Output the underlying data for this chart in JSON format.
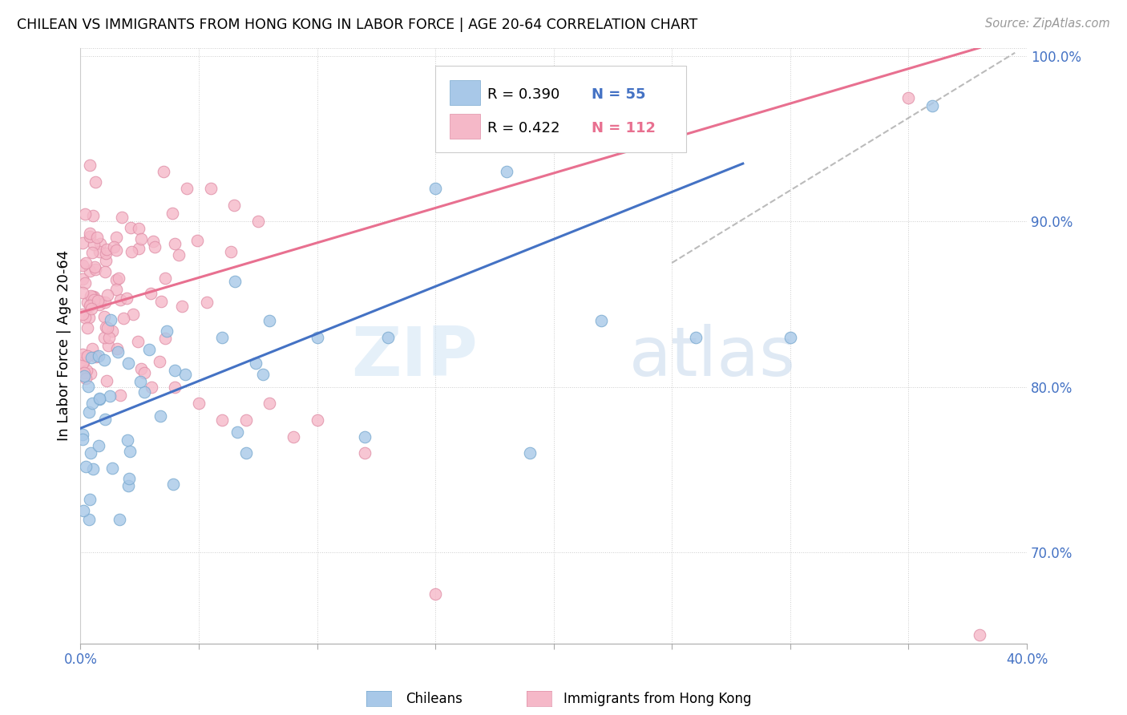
{
  "title": "CHILEAN VS IMMIGRANTS FROM HONG KONG IN LABOR FORCE | AGE 20-64 CORRELATION CHART",
  "source": "Source: ZipAtlas.com",
  "ylabel": "In Labor Force | Age 20-64",
  "xlim": [
    0.0,
    0.4
  ],
  "ylim": [
    0.645,
    1.005
  ],
  "blue_color": "#a8c8e8",
  "blue_edge_color": "#7aaad0",
  "pink_color": "#f5b8c8",
  "pink_edge_color": "#e090a8",
  "blue_line_color": "#4472c4",
  "pink_line_color": "#e87090",
  "dash_line_color": "#aaaaaa",
  "blue_R": 0.39,
  "blue_N": 55,
  "pink_R": 0.422,
  "pink_N": 112,
  "watermark_zip": "ZIP",
  "watermark_atlas": "atlas",
  "background_color": "#ffffff",
  "blue_line_x0": 0.0,
  "blue_line_y0": 0.775,
  "blue_line_x1": 0.28,
  "blue_line_y1": 0.935,
  "pink_line_x0": 0.0,
  "pink_line_y0": 0.845,
  "pink_line_x1": 0.38,
  "pink_line_y1": 1.005,
  "dash_line_x0": 0.25,
  "dash_line_y0": 0.875,
  "dash_line_x1": 0.395,
  "dash_line_y1": 1.002,
  "ytick_positions": [
    0.7,
    0.8,
    0.9,
    1.0
  ],
  "yticklabels": [
    "70.0%",
    "80.0%",
    "90.0%",
    "100.0%"
  ],
  "xtick_positions": [
    0.0,
    0.05,
    0.1,
    0.15,
    0.2,
    0.25,
    0.3,
    0.35,
    0.4
  ],
  "xticklabels": [
    "0.0%",
    "",
    "",
    "",
    "",
    "",
    "",
    "",
    "40.0%"
  ]
}
